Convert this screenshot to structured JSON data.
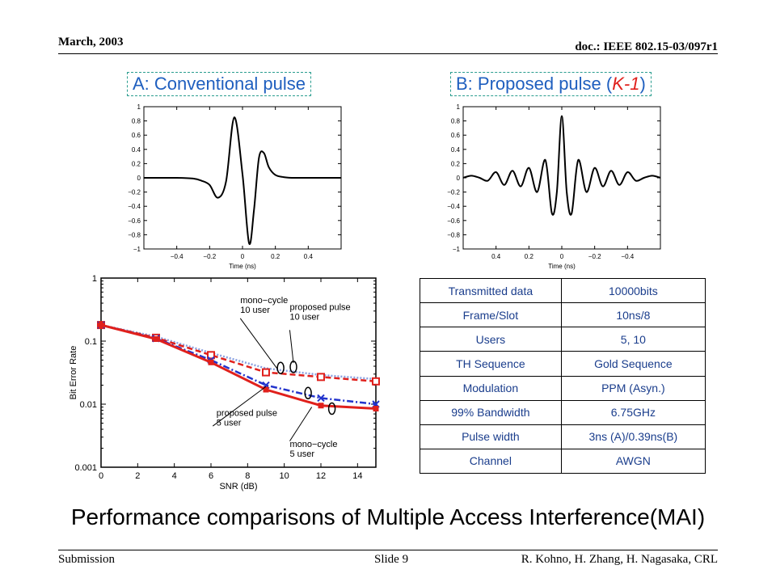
{
  "header": {
    "date": "March, 2003",
    "doc_id": "doc.: IEEE 802.15-03/097r1"
  },
  "footer": {
    "left": "Submission",
    "center": "Slide 9",
    "right": "R. Kohno, H. Zhang, H. Nagasaka, CRL"
  },
  "pulse_a": {
    "title": "A: Conventional pulse"
  },
  "pulse_b": {
    "title_prefix": "B: Proposed pulse (",
    "title_k": "K-1",
    "title_suffix": ")"
  },
  "table": {
    "rows": [
      {
        "param": "Transmitted data",
        "value": "10000bits"
      },
      {
        "param": "Frame/Slot",
        "value": "10ns/8"
      },
      {
        "param": "Users",
        "value": "5, 10"
      },
      {
        "param": "TH Sequence",
        "value": "Gold Sequence"
      },
      {
        "param": "Modulation",
        "value": "PPM (Asyn.)"
      },
      {
        "param": "99% Bandwidth",
        "value": "6.75GHz"
      },
      {
        "param": "Pulse width",
        "value": "3ns (A)/0.39ns(B)"
      },
      {
        "param": "Channel",
        "value": "AWGN"
      }
    ]
  },
  "caption": "Performance comparisons of Multiple Access Interference(MAI)",
  "chart_data": [
    {
      "type": "line",
      "xlabel": "Time (ns)",
      "ylabel": "",
      "xlim": [
        -0.6,
        0.6
      ],
      "ylim": [
        -1,
        1
      ],
      "xticks": [
        "−0.4",
        "−0.2",
        "0",
        "0.2",
        "0.4"
      ],
      "yticks": [
        "1",
        "0.8",
        "0.6",
        "0.4",
        "0.2",
        "0",
        "−0.2",
        "−0.4",
        "−0.6",
        "−0.8",
        "−1"
      ],
      "x": [
        -0.6,
        -0.4,
        -0.3,
        -0.25,
        -0.2,
        -0.15,
        -0.1,
        -0.05,
        0,
        0.04,
        0.07,
        0.1,
        0.13,
        0.16,
        0.2,
        0.25,
        0.3,
        0.35,
        0.4,
        0.5,
        0.6
      ],
      "y": [
        0,
        0,
        -0.01,
        -0.04,
        -0.1,
        -0.28,
        -0.05,
        0.85,
        0.05,
        -0.92,
        -0.45,
        0.28,
        0.35,
        0.15,
        0.04,
        0.01,
        0,
        0,
        0,
        0,
        0
      ],
      "line_color": "#000000"
    },
    {
      "type": "line",
      "xlabel": "Time (ns)",
      "ylabel": "",
      "xlim": [
        -0.6,
        0.6
      ],
      "ylim": [
        -1,
        1
      ],
      "xticks": [
        "0.4",
        "0.2",
        "0",
        "−0.2",
        "−0.4"
      ],
      "yticks": [
        "1",
        "0.8",
        "0.6",
        "0.4",
        "0.2",
        "0",
        "−0.2",
        "−0.4",
        "−0.6",
        "−0.8",
        "−1"
      ],
      "x": [
        -0.6,
        -0.55,
        -0.5,
        -0.45,
        -0.4,
        -0.35,
        -0.3,
        -0.25,
        -0.2,
        -0.15,
        -0.1,
        -0.06,
        -0.03,
        0,
        0.03,
        0.06,
        0.1,
        0.15,
        0.2,
        0.25,
        0.3,
        0.35,
        0.4,
        0.45,
        0.5,
        0.55,
        0.6
      ],
      "y": [
        0,
        0.03,
        0,
        -0.04,
        0.08,
        -0.1,
        0.1,
        -0.12,
        0.14,
        -0.2,
        0.25,
        -0.5,
        -0.2,
        0.87,
        -0.2,
        -0.5,
        0.25,
        -0.2,
        0.14,
        -0.12,
        0.1,
        -0.1,
        0.08,
        -0.04,
        0,
        0.03,
        0
      ],
      "line_color": "#000000"
    },
    {
      "type": "line",
      "xlabel": "SNR (dB)",
      "ylabel": "Bit Error Rate",
      "xlim": [
        0,
        15
      ],
      "ylim": [
        0.001,
        1
      ],
      "yscale": "log",
      "xticks": [
        "0",
        "2",
        "4",
        "6",
        "8",
        "10",
        "12",
        "14"
      ],
      "yticks": [
        "1",
        "0.1",
        "0.01",
        "0.001"
      ],
      "grid": false,
      "x": [
        0,
        3,
        6,
        9,
        12,
        15
      ],
      "series": [
        {
          "color": "#8aa0e0",
          "style": "dotted",
          "marker": "none",
          "values": [
            0.18,
            0.118,
            0.065,
            0.037,
            0.029,
            0.025
          ]
        },
        {
          "color": "#e0201c",
          "style": "dashed",
          "marker": "open-square",
          "values": [
            0.18,
            0.113,
            0.06,
            0.032,
            0.027,
            0.023
          ]
        },
        {
          "color": "#2233cc",
          "style": "dashdot",
          "marker": "x",
          "values": [
            0.18,
            0.11,
            0.05,
            0.02,
            0.0125,
            0.01
          ]
        },
        {
          "color": "#e0201c",
          "style": "solid",
          "marker": "filled-square",
          "values": [
            0.18,
            0.108,
            0.046,
            0.017,
            0.0095,
            0.0085
          ]
        }
      ],
      "annotations": [
        {
          "text_lines": [
            "mono−cycle",
            "10 user"
          ],
          "x": 7.6,
          "y": 0.4
        },
        {
          "text_lines": [
            "proposed pulse",
            "10 user"
          ],
          "x": 10.3,
          "y": 0.31
        },
        {
          "text_lines": [
            "proposed pulse",
            "5 user"
          ],
          "x": 6.3,
          "y": 0.0065
        },
        {
          "text_lines": [
            "mono−cycle",
            "5 user"
          ],
          "x": 10.3,
          "y": 0.0021
        }
      ]
    }
  ]
}
